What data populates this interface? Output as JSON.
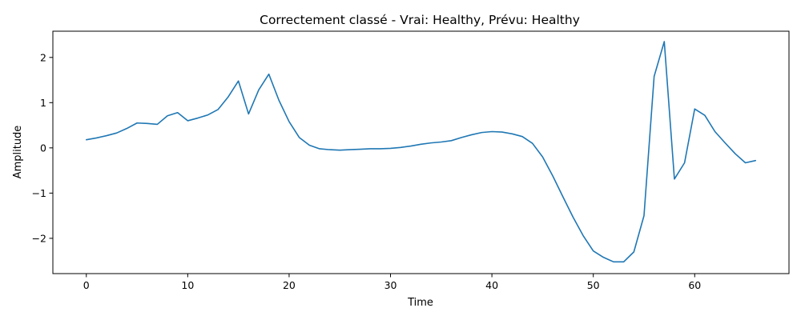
{
  "chart_data": {
    "type": "line",
    "title": "Correctement classé - Vrai: Healthy, Prévu: Healthy",
    "xlabel": "Time",
    "ylabel": "Amplitude",
    "xlim": [
      -3.3,
      69.3
    ],
    "ylim": [
      -2.78,
      2.58
    ],
    "xticks": [
      0,
      10,
      20,
      30,
      40,
      50,
      60
    ],
    "yticks": [
      -2,
      -1,
      0,
      1,
      2
    ],
    "grid": false,
    "series": [
      {
        "color": "#1f77b4",
        "x": [
          0,
          1,
          2,
          3,
          4,
          5,
          6,
          7,
          8,
          9,
          10,
          11,
          12,
          13,
          14,
          15,
          16,
          17,
          18,
          19,
          20,
          21,
          22,
          23,
          24,
          25,
          26,
          27,
          28,
          29,
          30,
          31,
          32,
          33,
          34,
          35,
          36,
          37,
          38,
          39,
          40,
          41,
          42,
          43,
          44,
          45,
          46,
          47,
          48,
          49,
          50,
          51,
          52,
          53,
          54,
          55,
          56,
          57,
          58,
          59,
          60,
          61,
          62,
          63,
          64,
          65,
          66
        ],
        "y": [
          0.18,
          0.22,
          0.27,
          0.33,
          0.43,
          0.55,
          0.54,
          0.52,
          0.71,
          0.78,
          0.6,
          0.66,
          0.73,
          0.85,
          1.13,
          1.48,
          0.75,
          1.28,
          1.63,
          1.05,
          0.58,
          0.23,
          0.06,
          -0.02,
          -0.04,
          -0.05,
          -0.04,
          -0.03,
          -0.02,
          -0.02,
          -0.01,
          0.01,
          0.04,
          0.08,
          0.11,
          0.13,
          0.16,
          0.23,
          0.29,
          0.34,
          0.36,
          0.35,
          0.31,
          0.25,
          0.1,
          -0.2,
          -0.62,
          -1.08,
          -1.53,
          -1.94,
          -2.28,
          -2.42,
          -2.52,
          -2.52,
          -2.3,
          -1.5,
          1.58,
          2.35,
          -0.69,
          -0.33,
          0.86,
          0.72,
          0.36,
          0.11,
          -0.13,
          -0.33,
          -0.28
        ]
      }
    ]
  }
}
